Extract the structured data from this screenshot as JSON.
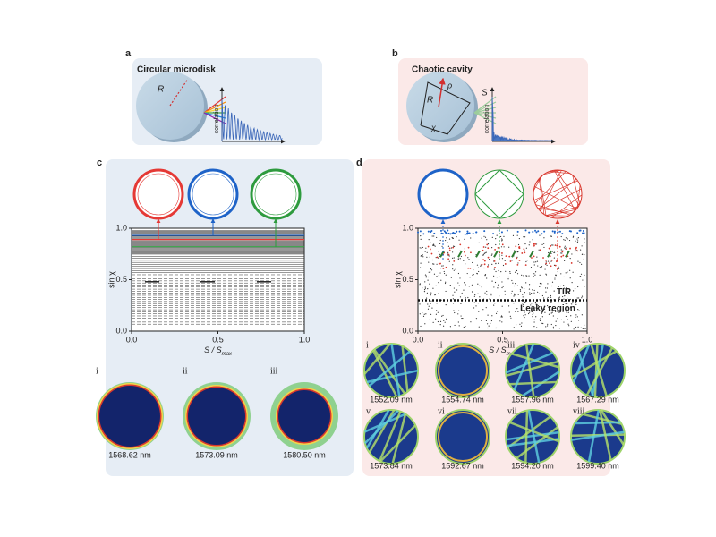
{
  "panel_a": {
    "label": "a",
    "title": "Circular microdisk",
    "radius_label": "R",
    "axis_label": "correlation"
  },
  "panel_b": {
    "label": "b",
    "title": "Chaotic cavity",
    "radius_label": "R",
    "rho_label": "ρ",
    "s_label": "S",
    "chi_label": "χ",
    "axis_label": "correlation"
  },
  "panel_c": {
    "label": "c",
    "y_axis_label": "sin χ",
    "x_axis_label": {
      "text": "S / S",
      "sub": "max"
    },
    "yticks": [
      "1.0",
      "0.5",
      "0.0"
    ],
    "xticks": [
      "0.0",
      "0.5",
      "1.0"
    ],
    "modes": [
      {
        "numeral": "i",
        "wavelength": "1568.62 nm"
      },
      {
        "numeral": "ii",
        "wavelength": "1573.09 nm"
      },
      {
        "numeral": "iii",
        "wavelength": "1580.50 nm"
      }
    ]
  },
  "panel_d": {
    "label": "d",
    "y_axis_label": "sin χ",
    "x_axis_label": {
      "text": "S / S",
      "sub": "max"
    },
    "yticks": [
      "1.0",
      "0.5",
      "0.0"
    ],
    "xticks": [
      "0.0",
      "0.5",
      "1.0"
    ],
    "annotations": [
      "TIR",
      "Leaky region"
    ],
    "modes": [
      {
        "numeral": "i",
        "wavelength": "1552.09 nm"
      },
      {
        "numeral": "ii",
        "wavelength": "1554.74 nm"
      },
      {
        "numeral": "iii",
        "wavelength": "1557.96 nm"
      },
      {
        "numeral": "iv",
        "wavelength": "1567.29 nm"
      },
      {
        "numeral": "v",
        "wavelength": "1573.84 nm"
      },
      {
        "numeral": "vi",
        "wavelength": "1592.67 nm"
      },
      {
        "numeral": "vii",
        "wavelength": "1594.20 nm"
      },
      {
        "numeral": "viii",
        "wavelength": "1599.40 nm"
      }
    ]
  }
}
